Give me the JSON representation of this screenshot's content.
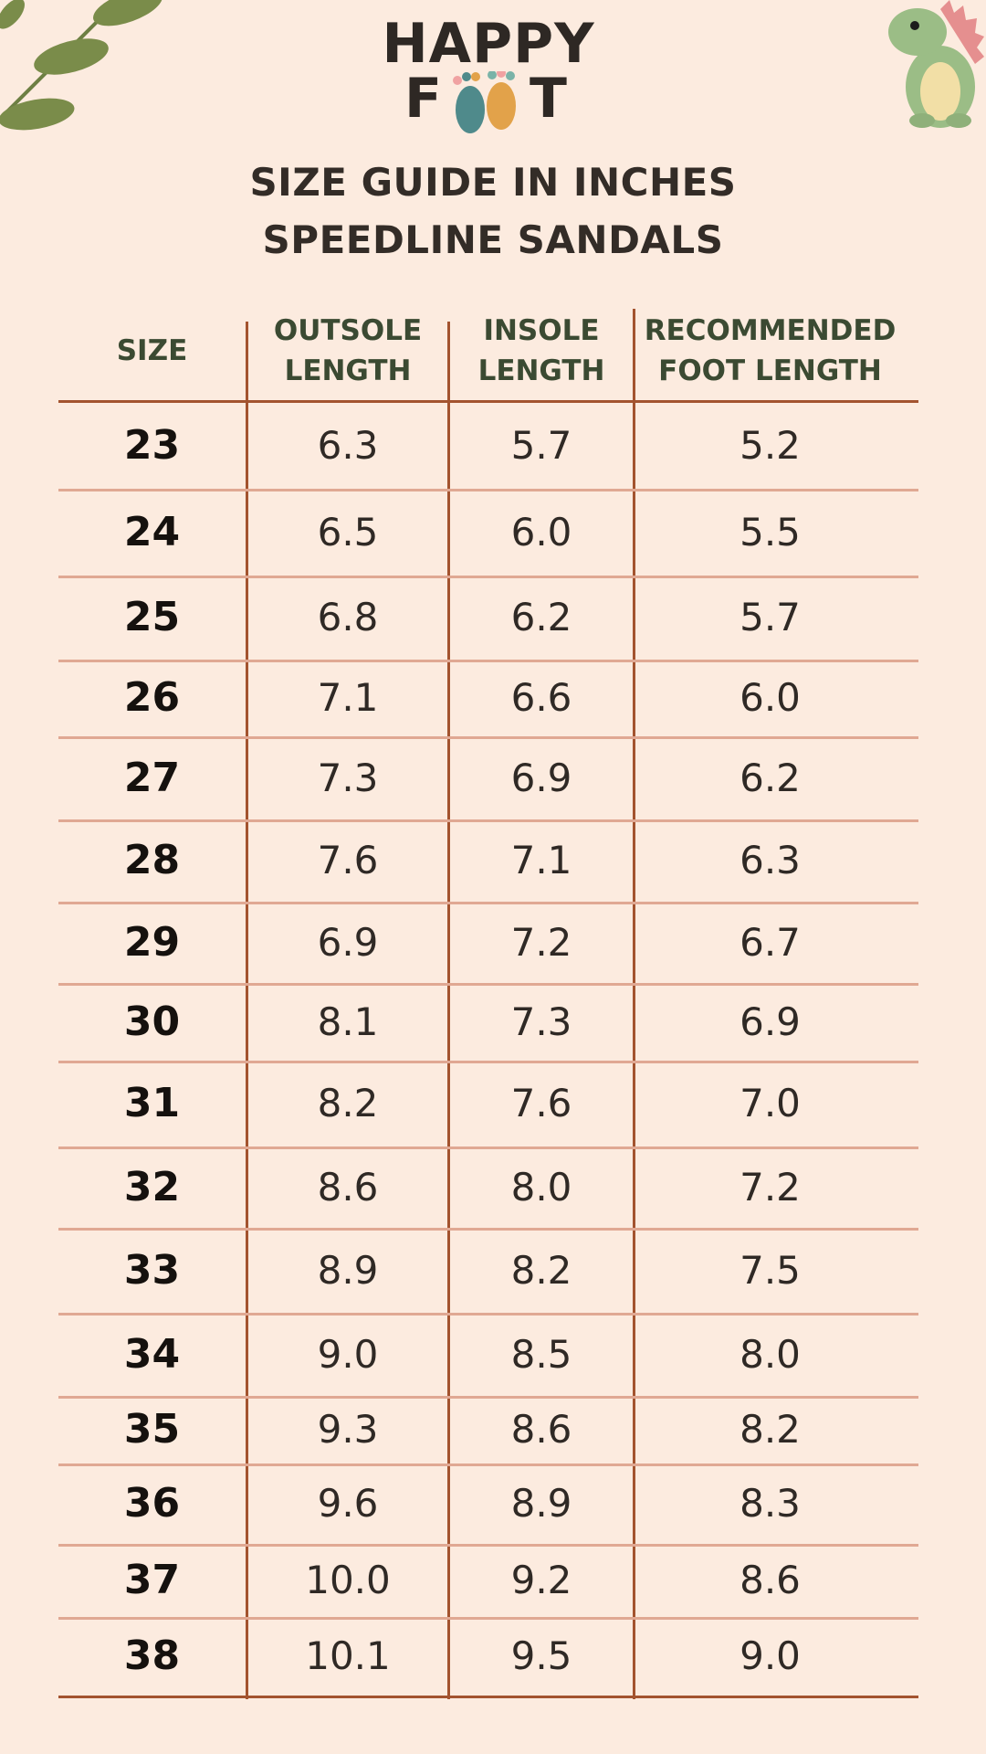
{
  "brand": {
    "line1": "HAPPY",
    "line2_left": "F",
    "line2_right": "T"
  },
  "title": {
    "line1": "SIZE GUIDE IN INCHES",
    "line2": "SPEEDLINE SANDALS"
  },
  "table": {
    "headers": [
      {
        "line1": "SIZE",
        "line2": ""
      },
      {
        "line1": "OUTSOLE",
        "line2": "LENGTH"
      },
      {
        "line1": "INSOLE",
        "line2": "LENGTH"
      },
      {
        "line1": "RECOMMENDED",
        "line2": "FOOT LENGTH"
      }
    ],
    "rows": [
      [
        "23",
        "6.3",
        "5.7",
        "5.2"
      ],
      [
        "24",
        "6.5",
        "6.0",
        "5.5"
      ],
      [
        "25",
        "6.8",
        "6.2",
        "5.7"
      ],
      [
        "26",
        "7.1",
        "6.6",
        "6.0"
      ],
      [
        "27",
        "7.3",
        "6.9",
        "6.2"
      ],
      [
        "28",
        "7.6",
        "7.1",
        "6.3"
      ],
      [
        "29",
        "6.9",
        "7.2",
        "6.7"
      ],
      [
        "30",
        "8.1",
        "7.3",
        "6.9"
      ],
      [
        "31",
        "8.2",
        "7.6",
        "7.0"
      ],
      [
        "32",
        "8.6",
        "8.0",
        "7.2"
      ],
      [
        "33",
        "8.9",
        "8.2",
        "7.5"
      ],
      [
        "34",
        "9.0",
        "8.5",
        "8.0"
      ],
      [
        "35",
        "9.3",
        "8.6",
        "8.2"
      ],
      [
        "36",
        "9.6",
        "8.9",
        "8.3"
      ],
      [
        "37",
        "10.0",
        "9.2",
        "8.6"
      ],
      [
        "38",
        "10.1",
        "9.5",
        "9.0"
      ]
    ]
  },
  "decorations": {
    "top_left": "leaves-illustration",
    "top_right": "dinosaur-illustration"
  },
  "colors": {
    "background": "#fcebdf",
    "rule": "#a3532f",
    "row_rule": "#e0a893",
    "header_text": "#3b4a32"
  }
}
